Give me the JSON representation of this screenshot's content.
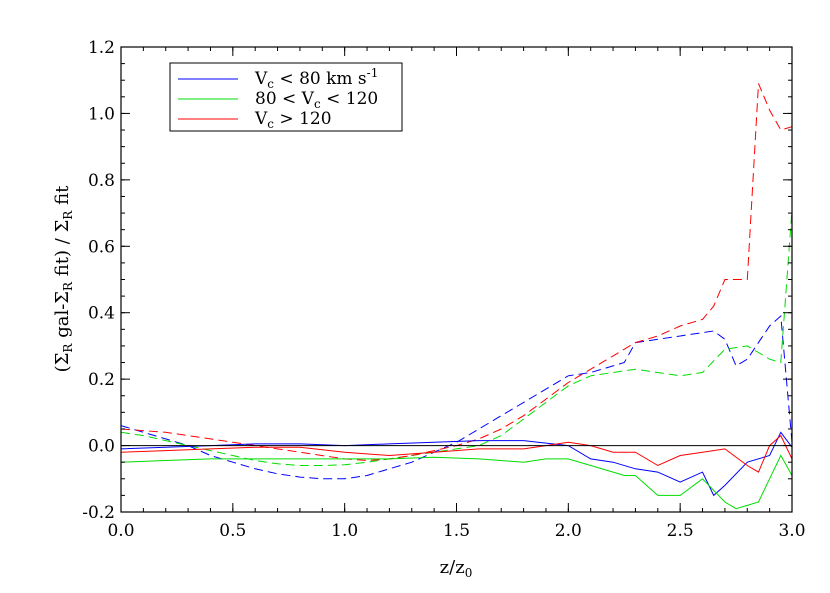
{
  "chart_data": {
    "type": "line",
    "xlabel": "z/z",
    "xlabel_sub": "0",
    "ylabel_parts": [
      "(Σ",
      "R",
      " gal-Σ",
      "R",
      " fit) / Σ",
      "R",
      " fit"
    ],
    "xlim": [
      0.0,
      3.0
    ],
    "ylim": [
      -0.2,
      1.2
    ],
    "xticks": [
      0.0,
      0.5,
      1.0,
      1.5,
      2.0,
      2.5,
      3.0
    ],
    "xtick_labels": [
      "0.0",
      "0.5",
      "1.0",
      "1.5",
      "2.0",
      "2.5",
      "3.0"
    ],
    "yticks": [
      -0.2,
      0.0,
      0.2,
      0.4,
      0.6,
      0.8,
      1.0,
      1.2
    ],
    "ytick_labels": [
      "-0.2",
      "0.0",
      "0.2",
      "0.4",
      "0.6",
      "0.8",
      "1.0",
      "1.2"
    ],
    "reference_line_y": 0.0,
    "legend": {
      "placement": "top-left",
      "entries": [
        {
          "color": "#0000ff",
          "parts": [
            "V",
            "c",
            " < 80 km s",
            "-1"
          ]
        },
        {
          "color": "#00dd00",
          "parts": [
            "80 < V",
            "c",
            " < 120"
          ]
        },
        {
          "color": "#ff0000",
          "parts": [
            "V",
            "c",
            " > 120"
          ]
        }
      ]
    },
    "series": [
      {
        "color": "#0000ff",
        "style": "dashed",
        "x": [
          0.0,
          0.1,
          0.2,
          0.3,
          0.4,
          0.5,
          0.6,
          0.7,
          0.8,
          0.9,
          1.0,
          1.1,
          1.2,
          1.3,
          1.4,
          1.5,
          1.6,
          1.7,
          1.8,
          1.9,
          2.0,
          2.1,
          2.2,
          2.25,
          2.3,
          2.4,
          2.5,
          2.6,
          2.65,
          2.7,
          2.75,
          2.8,
          2.9,
          2.95,
          3.0
        ],
        "y": [
          0.06,
          0.04,
          0.02,
          0.0,
          -0.03,
          -0.05,
          -0.07,
          -0.085,
          -0.095,
          -0.1,
          -0.1,
          -0.09,
          -0.07,
          -0.05,
          -0.02,
          0.01,
          0.05,
          0.09,
          0.13,
          0.17,
          0.21,
          0.22,
          0.24,
          0.25,
          0.31,
          0.32,
          0.33,
          0.34,
          0.345,
          0.32,
          0.24,
          0.26,
          0.36,
          0.39,
          0.01
        ]
      },
      {
        "color": "#00dd00",
        "style": "dashed",
        "x": [
          0.0,
          0.1,
          0.2,
          0.3,
          0.4,
          0.5,
          0.6,
          0.7,
          0.8,
          0.9,
          1.0,
          1.1,
          1.2,
          1.3,
          1.4,
          1.5,
          1.6,
          1.7,
          1.8,
          1.9,
          2.0,
          2.1,
          2.2,
          2.3,
          2.4,
          2.5,
          2.6,
          2.7,
          2.8,
          2.9,
          2.95,
          3.0
        ],
        "y": [
          0.04,
          0.03,
          0.015,
          0.0,
          -0.015,
          -0.03,
          -0.045,
          -0.055,
          -0.06,
          -0.06,
          -0.058,
          -0.05,
          -0.04,
          -0.03,
          -0.02,
          -0.01,
          0.0,
          0.03,
          0.08,
          0.13,
          0.18,
          0.21,
          0.22,
          0.23,
          0.22,
          0.21,
          0.22,
          0.29,
          0.3,
          0.26,
          0.25,
          0.71
        ]
      },
      {
        "color": "#ff0000",
        "style": "dashed",
        "x": [
          0.0,
          0.2,
          0.4,
          0.6,
          0.8,
          1.0,
          1.1,
          1.2,
          1.3,
          1.4,
          1.5,
          1.6,
          1.7,
          1.8,
          1.9,
          2.0,
          2.1,
          2.2,
          2.3,
          2.4,
          2.5,
          2.6,
          2.65,
          2.7,
          2.75,
          2.8,
          2.85,
          2.9,
          2.95,
          3.0
        ],
        "y": [
          0.05,
          0.04,
          0.02,
          0.0,
          -0.02,
          -0.04,
          -0.045,
          -0.04,
          -0.03,
          -0.015,
          0.0,
          0.02,
          0.05,
          0.09,
          0.14,
          0.19,
          0.23,
          0.27,
          0.31,
          0.33,
          0.36,
          0.38,
          0.42,
          0.5,
          0.5,
          0.5,
          1.09,
          1.01,
          0.95,
          0.96
        ]
      },
      {
        "color": "#0000ff",
        "style": "solid",
        "x": [
          0.0,
          0.2,
          0.4,
          0.6,
          0.8,
          1.0,
          1.2,
          1.4,
          1.6,
          1.8,
          2.0,
          2.1,
          2.2,
          2.3,
          2.4,
          2.5,
          2.6,
          2.65,
          2.7,
          2.8,
          2.9,
          2.95,
          3.0
        ],
        "y": [
          -0.01,
          -0.005,
          0.0,
          0.005,
          0.005,
          0.0,
          0.005,
          0.01,
          0.015,
          0.015,
          0.0,
          -0.04,
          -0.05,
          -0.07,
          -0.08,
          -0.11,
          -0.08,
          -0.15,
          -0.12,
          -0.05,
          -0.03,
          0.04,
          -0.005
        ]
      },
      {
        "color": "#00dd00",
        "style": "solid",
        "x": [
          0.0,
          0.2,
          0.4,
          0.6,
          0.8,
          1.0,
          1.2,
          1.4,
          1.6,
          1.8,
          1.9,
          2.0,
          2.1,
          2.2,
          2.25,
          2.3,
          2.4,
          2.45,
          2.5,
          2.6,
          2.7,
          2.75,
          2.8,
          2.85,
          2.9,
          2.95,
          3.0
        ],
        "y": [
          -0.05,
          -0.045,
          -0.04,
          -0.04,
          -0.04,
          -0.04,
          -0.04,
          -0.035,
          -0.04,
          -0.05,
          -0.04,
          -0.04,
          -0.06,
          -0.08,
          -0.09,
          -0.09,
          -0.15,
          -0.15,
          -0.15,
          -0.1,
          -0.17,
          -0.19,
          -0.18,
          -0.17,
          -0.1,
          -0.03,
          -0.09
        ]
      },
      {
        "color": "#ff0000",
        "style": "solid",
        "x": [
          0.0,
          0.2,
          0.4,
          0.6,
          0.8,
          1.0,
          1.2,
          1.4,
          1.6,
          1.8,
          1.9,
          2.0,
          2.1,
          2.2,
          2.3,
          2.4,
          2.5,
          2.6,
          2.7,
          2.8,
          2.85,
          2.9,
          2.95,
          3.0
        ],
        "y": [
          -0.02,
          -0.015,
          -0.01,
          -0.005,
          -0.005,
          -0.02,
          -0.03,
          -0.02,
          -0.01,
          -0.01,
          0.0,
          0.01,
          0.0,
          -0.02,
          -0.02,
          -0.06,
          -0.03,
          -0.02,
          -0.01,
          -0.06,
          -0.08,
          0.0,
          0.03,
          -0.04
        ]
      }
    ]
  }
}
